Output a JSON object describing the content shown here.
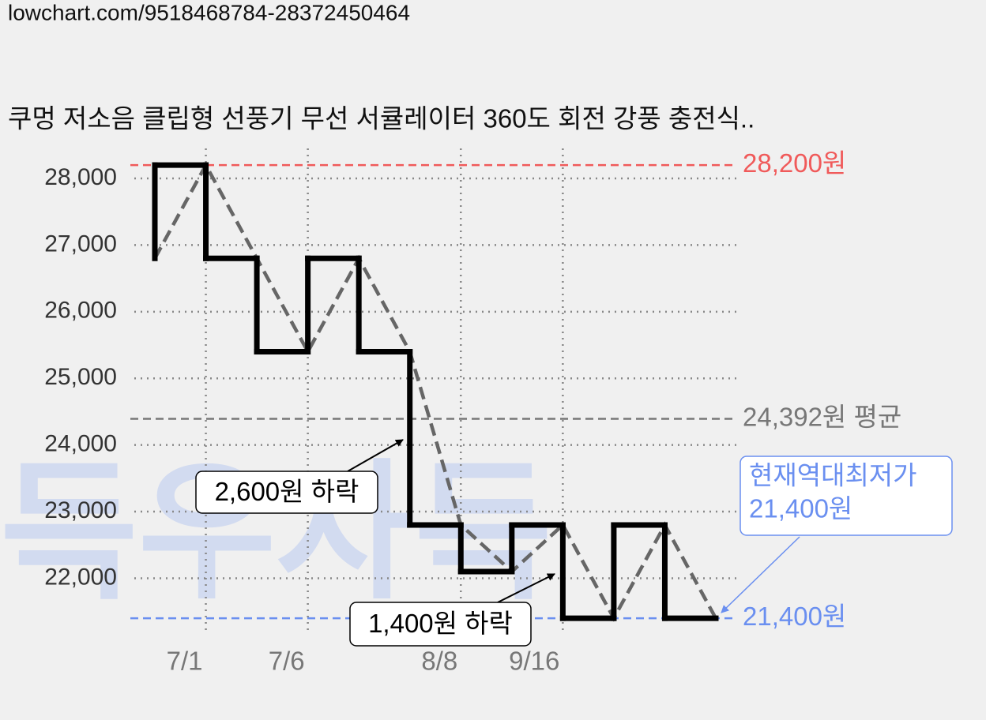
{
  "header": {
    "url": "lowchart.com/9518468784-28372450464"
  },
  "chart_data": {
    "type": "step-line",
    "title": "쿠멍 저소음 클립형 선풍기 무선 서큘레이터 360도 회전 강풍 충전식..",
    "categories": [
      null,
      "7/1",
      null,
      "7/6",
      null,
      null,
      "8/8",
      null,
      "9/16",
      null,
      null,
      null
    ],
    "series": [
      {
        "color": "#000000",
        "trend_color": "#666666",
        "values": [
          26800,
          28200,
          26800,
          25400,
          26800,
          25400,
          22800,
          22100,
          22800,
          21400,
          22800,
          21400
        ]
      }
    ],
    "ylim": [
      21200,
      28450
    ],
    "yticks": [
      {
        "value": 22000,
        "label": "22,000"
      },
      {
        "value": 23000,
        "label": "23,000"
      },
      {
        "value": 24000,
        "label": "24,000"
      },
      {
        "value": 25000,
        "label": "25,000"
      },
      {
        "value": 26000,
        "label": "26,000"
      },
      {
        "value": 27000,
        "label": "27,000"
      },
      {
        "value": 28000,
        "label": "28,000"
      }
    ],
    "grid": true,
    "reference_lines": [
      {
        "value": 28200,
        "label": "28,200원",
        "color": "#f05a5a"
      },
      {
        "value": 24392,
        "label": "24,392원 평균",
        "color": "#777777"
      },
      {
        "value": 21400,
        "label": "21,400원",
        "color": "#6a8ff0"
      }
    ],
    "annotations": [
      {
        "text": "2,600원 하락"
      },
      {
        "text": "1,400원 하락"
      }
    ],
    "callout": [
      "현재역대최저가",
      "21,400원"
    ],
    "watermark": "득우자득"
  }
}
